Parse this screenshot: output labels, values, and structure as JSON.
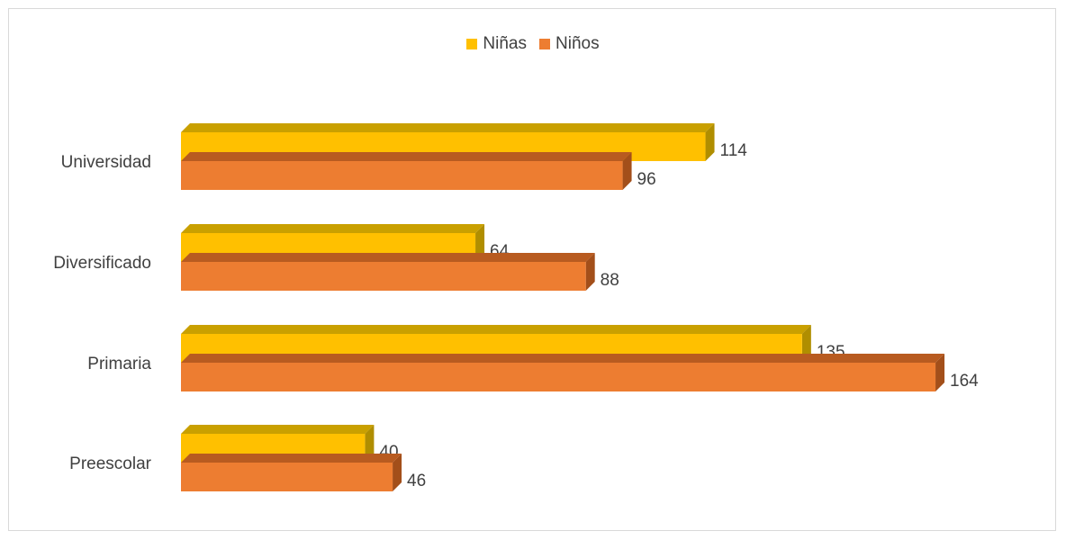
{
  "chart_data": {
    "type": "bar",
    "orientation": "horizontal",
    "categories": [
      "Universidad",
      "Diversificado",
      "Primaria",
      "Preescolar"
    ],
    "series": [
      {
        "name": "Niñas",
        "values": [
          114,
          64,
          135,
          40
        ],
        "color": "#FFC000",
        "top_color": "#C9A000",
        "side_color": "#B08E00"
      },
      {
        "name": "Niños",
        "values": [
          96,
          88,
          164,
          46
        ],
        "color": "#ED7D31",
        "top_color": "#B85B20",
        "side_color": "#A34F1A"
      }
    ],
    "legend_position": "top",
    "grid": false,
    "style": "3d-bar"
  }
}
